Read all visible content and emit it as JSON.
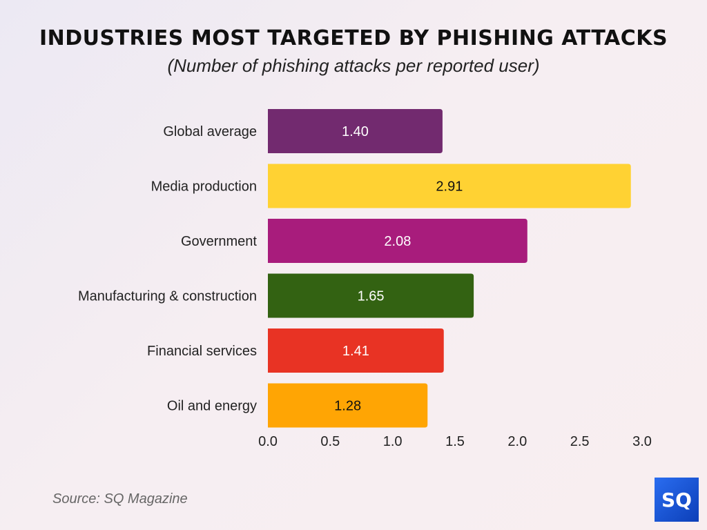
{
  "chart_data": {
    "type": "bar",
    "orientation": "horizontal",
    "title": "INDUSTRIES MOST TARGETED BY PHISHING ATTACKS",
    "subtitle": "(Number of phishing attacks per reported user)",
    "categories": [
      "Global average",
      "Media production",
      "Government",
      "Manufacturing & construction",
      "Financial services",
      "Oil and energy"
    ],
    "values": [
      1.4,
      2.91,
      2.08,
      1.65,
      1.41,
      1.28
    ],
    "data_labels": [
      "1.40",
      "2.91",
      "2.08",
      "1.65",
      "1.41",
      "1.28"
    ],
    "colors": [
      "#722A6F",
      "#FFD233",
      "#A81C7C",
      "#336212",
      "#E83324",
      "#FFA504"
    ],
    "label_colors": [
      "#ffffff",
      "#111111",
      "#ffffff",
      "#ffffff",
      "#ffffff",
      "#111111"
    ],
    "xlim": [
      0,
      3.0
    ],
    "xticks": [
      "0.0",
      "0.5",
      "1.0",
      "1.5",
      "2.0",
      "2.5",
      "3.0"
    ],
    "grid": false,
    "xlabel": "",
    "ylabel": ""
  },
  "source": "Source: SQ Magazine",
  "logo_text": "SQ"
}
